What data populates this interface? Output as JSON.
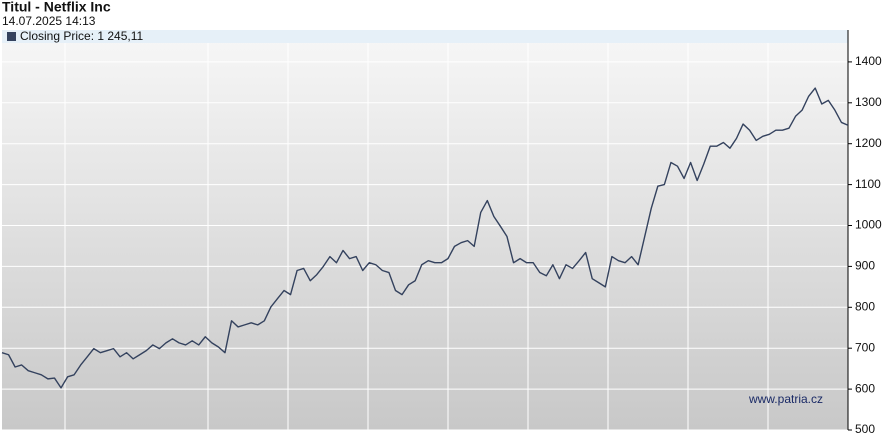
{
  "chart_data": {
    "type": "line",
    "title": "Titul - Netflix Inc",
    "subtitle": "14.07.2025 14:13",
    "legend": "Closing Price: 1 245,11",
    "watermark": "www.patria.cz",
    "series": [
      {
        "name": "Closing Price",
        "color": "#34425e",
        "values": [
          689,
          684,
          654,
          659,
          645,
          640,
          635,
          625,
          627,
          603,
          630,
          635,
          659,
          679,
          699,
          689,
          694,
          699,
          679,
          689,
          674,
          684,
          694,
          708,
          699,
          713,
          723,
          713,
          708,
          718,
          708,
          728,
          713,
          703,
          689,
          767,
          752,
          757,
          762,
          757,
          767,
          801,
          821,
          841,
          831,
          890,
          895,
          865,
          880,
          900,
          924,
          909,
          939,
          919,
          924,
          890,
          909,
          904,
          890,
          885,
          841,
          831,
          855,
          865,
          904,
          914,
          909,
          909,
          919,
          949,
          958,
          963,
          949,
          1032,
          1061,
          1022,
          998,
          973,
          909,
          919,
          909,
          909,
          885,
          877,
          904,
          870,
          904,
          895,
          914,
          934,
          870,
          860,
          850,
          924,
          914,
          909,
          924,
          904,
          973,
          1042,
          1096,
          1100,
          1154,
          1145,
          1115,
          1154,
          1110,
          1150,
          1194,
          1194,
          1203,
          1189,
          1213,
          1248,
          1233,
          1208,
          1218,
          1223,
          1233,
          1233,
          1238,
          1267,
          1282,
          1316,
          1336,
          1297,
          1306,
          1282,
          1252,
          1245.11
        ]
      }
    ],
    "ylim": [
      500,
      1478
    ],
    "yticks": [
      500,
      600,
      700,
      800,
      900,
      1000,
      1100,
      1200,
      1300,
      1400
    ],
    "grid": true
  }
}
